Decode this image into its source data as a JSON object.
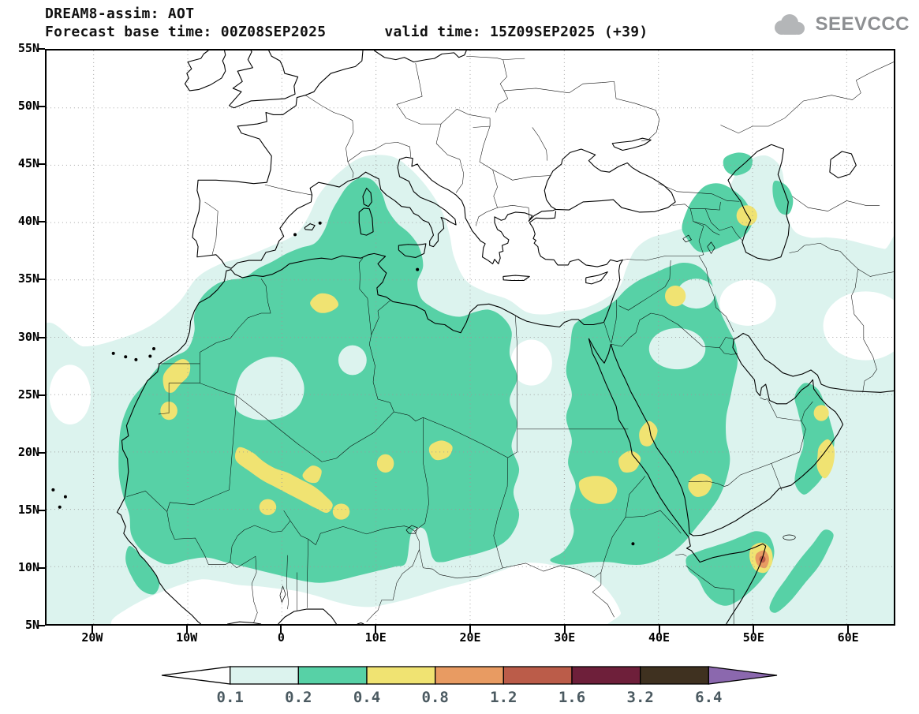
{
  "header": {
    "title": "DREAM8-assim: AOT",
    "forecast_base_label": "Forecast base time: 00Z08SEP2025",
    "valid_label": "valid time: 15Z09SEP2025 (+39)"
  },
  "logo": {
    "text": "SEEVCCC"
  },
  "chart_data": {
    "type": "heatmap",
    "subtype": "filled_contour_geographic_map",
    "title": "DREAM8-assim: AOT",
    "variable": "Aerosol Optical Thickness (AOT)",
    "model": "DREAM8-assim",
    "forecast_base_time": "00Z08SEP2025",
    "valid_time": "15Z09SEP2025",
    "lead": "+39",
    "projection": "latlon",
    "lon_range": [
      -25,
      65
    ],
    "lat_range": [
      5,
      55
    ],
    "grid": "dotted",
    "axes": {
      "lat": {
        "values": [
          55,
          50,
          45,
          40,
          35,
          30,
          25,
          20,
          15,
          10,
          5
        ],
        "labels": [
          "55N",
          "50N",
          "45N",
          "40N",
          "35N",
          "30N",
          "25N",
          "20N",
          "15N",
          "10N",
          "5N"
        ]
      },
      "lon": {
        "values": [
          -20,
          -10,
          0,
          10,
          20,
          30,
          40,
          50,
          60
        ],
        "labels": [
          "20W",
          "10W",
          "0",
          "10E",
          "20E",
          "30E",
          "40E",
          "50E",
          "60E"
        ]
      }
    },
    "legend": {
      "position": "bottom",
      "levels": [
        0.1,
        0.2,
        0.4,
        0.8,
        1.2,
        1.6,
        3.2,
        6.4
      ],
      "labels": [
        "0.1",
        "0.2",
        "0.4",
        "0.8",
        "1.2",
        "1.6",
        "3.2",
        "6.4"
      ],
      "colors": [
        "#FFFFFF",
        "#DCF3EE",
        "#57D1A6",
        "#F0E372",
        "#E89B62",
        "#BB5C49",
        "#6E1F3A",
        "#3F3120",
        "#8B68AE"
      ],
      "label_color": "#4b5a61"
    },
    "features": [
      {
        "region": "western/central Sahara (Mauritania-Mali-Niger-Chad)",
        "aot_band": "0.2-0.4 with 0.4-0.8 patches"
      },
      {
        "region": "Sahel plume ~5W-6E, 15N-20N",
        "aot_band": "0.4-0.8"
      },
      {
        "region": "Western Sahara coast ~11W, 24N-28N",
        "aot_band": "0.4-0.8"
      },
      {
        "region": "central Mediterranean / Sardinia-Corsica",
        "aot_band": "0.2-0.4"
      },
      {
        "region": "Sudan - Red Sea - western Arabia",
        "aot_band": "0.2-0.4 with 0.4-0.8 patches"
      },
      {
        "region": "Caucasus-Caspian",
        "aot_band": "0.2-0.4 with small 0.4-0.8 spot"
      },
      {
        "region": "Horn of Africa ~51E,10.5N",
        "aot_band": "local max 0.8-1.6"
      },
      {
        "region": "Oman / NW Arabian Sea",
        "aot_band": "0.2-0.8"
      }
    ]
  }
}
